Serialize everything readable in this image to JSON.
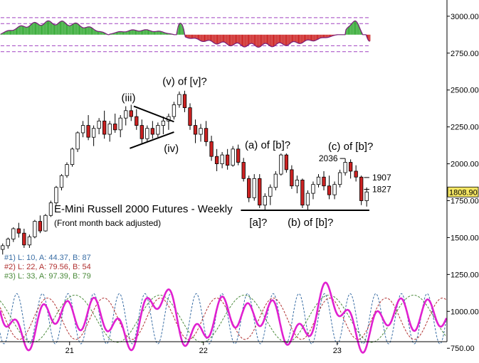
{
  "chart_data": {
    "type": "candlestick",
    "title": "E-Mini Russell 2000 Futures - Weekly",
    "subtitle": "(Front month back adjusted)",
    "colors": {
      "up_candle": "#ffffff",
      "down_candle": "#cc2222",
      "hist_pos": "#33aa33",
      "hist_neg": "#cc2222",
      "osc_main": "#e020d0",
      "cyc1": "#3a6ea5",
      "cyc2": "#b03030",
      "cyc3": "#4a8a3a",
      "last_price_box": "#f5e663",
      "grid_dash": "#a040c0"
    },
    "y_axis": {
      "ylim": [
        650,
        3110
      ],
      "ticks": [
        {
          "v": 3000,
          "label": "3000.00"
        },
        {
          "v": 2750,
          "label": "2750.00"
        },
        {
          "v": 2500,
          "label": "2500.00"
        },
        {
          "v": 2250,
          "label": "2250.00"
        },
        {
          "v": 2000,
          "label": "2000.00"
        },
        {
          "v": 1750,
          "label": "1750.00"
        },
        {
          "v": 1500,
          "label": "1500.00"
        },
        {
          "v": 1250,
          "label": "1250.00"
        },
        {
          "v": 1000,
          "label": "1000.00"
        },
        {
          "v": 750,
          "label": "750.00"
        }
      ]
    },
    "x_axis": {
      "ticks": [
        {
          "t": 0.5,
          "label": "21"
        },
        {
          "t": 1.5,
          "label": "22"
        },
        {
          "t": 2.5,
          "label": "23"
        }
      ],
      "range": [
        -0.02,
        3.32
      ]
    },
    "last_price": {
      "v": 1808.9,
      "label": "1808.90"
    },
    "levels": [
      {
        "v": 2036,
        "label": "2036",
        "t0": 2.52,
        "t1": 2.56
      },
      {
        "v": 1907,
        "label": "1907",
        "t0": 2.7,
        "t1": 2.74
      },
      {
        "v": 1827,
        "label": "1827",
        "t0": 2.7,
        "t1": 2.74
      }
    ],
    "support": {
      "v": 1685,
      "t0": 1.78,
      "t1": 2.74
    },
    "wave_labels": [
      {
        "text": "(iii)",
        "t": 0.94,
        "v": 2425
      },
      {
        "text": "(v) of [v]?",
        "t": 1.36,
        "v": 2535
      },
      {
        "text": "(iv)",
        "t": 1.26,
        "v": 2080
      },
      {
        "text": "(a) of [b]?",
        "t": 1.98,
        "v": 2105
      },
      {
        "text": "(c) of [b]?",
        "t": 2.6,
        "v": 2095
      },
      {
        "text": "[a]?",
        "t": 1.91,
        "v": 1578
      },
      {
        "text": "(b) of [b]?",
        "t": 2.3,
        "v": 1578
      }
    ],
    "triangle": [
      {
        "t": 0.98,
        "v": 2390
      },
      {
        "t": 1.28,
        "v": 2285
      },
      {
        "t": 0.95,
        "v": 2105
      },
      {
        "t": 1.28,
        "v": 2215
      }
    ],
    "candles": [
      {
        "t": 0.0,
        "o": 1420,
        "h": 1460,
        "l": 1385,
        "c": 1445
      },
      {
        "t": 0.04,
        "o": 1445,
        "h": 1500,
        "l": 1425,
        "c": 1490
      },
      {
        "t": 0.08,
        "o": 1490,
        "h": 1570,
        "l": 1470,
        "c": 1560
      },
      {
        "t": 0.12,
        "o": 1560,
        "h": 1600,
        "l": 1500,
        "c": 1530
      },
      {
        "t": 0.16,
        "o": 1530,
        "h": 1560,
        "l": 1430,
        "c": 1450
      },
      {
        "t": 0.2,
        "o": 1450,
        "h": 1520,
        "l": 1430,
        "c": 1505
      },
      {
        "t": 0.24,
        "o": 1505,
        "h": 1620,
        "l": 1495,
        "c": 1610
      },
      {
        "t": 0.28,
        "o": 1610,
        "h": 1650,
        "l": 1530,
        "c": 1545
      },
      {
        "t": 0.32,
        "o": 1545,
        "h": 1660,
        "l": 1540,
        "c": 1650
      },
      {
        "t": 0.36,
        "o": 1650,
        "h": 1750,
        "l": 1640,
        "c": 1735
      },
      {
        "t": 0.4,
        "o": 1735,
        "h": 1850,
        "l": 1720,
        "c": 1840
      },
      {
        "t": 0.44,
        "o": 1840,
        "h": 1930,
        "l": 1820,
        "c": 1920
      },
      {
        "t": 0.48,
        "o": 1920,
        "h": 2010,
        "l": 1905,
        "c": 1995
      },
      {
        "t": 0.52,
        "o": 1995,
        "h": 2110,
        "l": 1980,
        "c": 2100
      },
      {
        "t": 0.56,
        "o": 2100,
        "h": 2220,
        "l": 2080,
        "c": 2210
      },
      {
        "t": 0.6,
        "o": 2210,
        "h": 2290,
        "l": 2180,
        "c": 2260
      },
      {
        "t": 0.64,
        "o": 2260,
        "h": 2330,
        "l": 2160,
        "c": 2180
      },
      {
        "t": 0.68,
        "o": 2180,
        "h": 2260,
        "l": 2120,
        "c": 2240
      },
      {
        "t": 0.72,
        "o": 2240,
        "h": 2310,
        "l": 2200,
        "c": 2290
      },
      {
        "t": 0.76,
        "o": 2290,
        "h": 2360,
        "l": 2170,
        "c": 2200
      },
      {
        "t": 0.8,
        "o": 2200,
        "h": 2290,
        "l": 2150,
        "c": 2270
      },
      {
        "t": 0.84,
        "o": 2270,
        "h": 2340,
        "l": 2210,
        "c": 2230
      },
      {
        "t": 0.88,
        "o": 2230,
        "h": 2330,
        "l": 2180,
        "c": 2310
      },
      {
        "t": 0.92,
        "o": 2310,
        "h": 2390,
        "l": 2260,
        "c": 2360
      },
      {
        "t": 0.96,
        "o": 2360,
        "h": 2400,
        "l": 2290,
        "c": 2320
      },
      {
        "t": 1.0,
        "o": 2320,
        "h": 2370,
        "l": 2230,
        "c": 2260
      },
      {
        "t": 1.04,
        "o": 2260,
        "h": 2300,
        "l": 2140,
        "c": 2170
      },
      {
        "t": 1.08,
        "o": 2170,
        "h": 2260,
        "l": 2150,
        "c": 2240
      },
      {
        "t": 1.12,
        "o": 2240,
        "h": 2290,
        "l": 2170,
        "c": 2200
      },
      {
        "t": 1.16,
        "o": 2200,
        "h": 2280,
        "l": 2180,
        "c": 2260
      },
      {
        "t": 1.2,
        "o": 2260,
        "h": 2320,
        "l": 2200,
        "c": 2290
      },
      {
        "t": 1.24,
        "o": 2290,
        "h": 2340,
        "l": 2230,
        "c": 2320
      },
      {
        "t": 1.28,
        "o": 2320,
        "h": 2420,
        "l": 2300,
        "c": 2400
      },
      {
        "t": 1.32,
        "o": 2400,
        "h": 2490,
        "l": 2380,
        "c": 2470
      },
      {
        "t": 1.36,
        "o": 2470,
        "h": 2495,
        "l": 2350,
        "c": 2380
      },
      {
        "t": 1.4,
        "o": 2380,
        "h": 2410,
        "l": 2230,
        "c": 2260
      },
      {
        "t": 1.44,
        "o": 2260,
        "h": 2300,
        "l": 2140,
        "c": 2200
      },
      {
        "t": 1.48,
        "o": 2200,
        "h": 2270,
        "l": 2150,
        "c": 2240
      },
      {
        "t": 1.52,
        "o": 2240,
        "h": 2290,
        "l": 2120,
        "c": 2150
      },
      {
        "t": 1.56,
        "o": 2150,
        "h": 2190,
        "l": 2020,
        "c": 2050
      },
      {
        "t": 1.6,
        "o": 2050,
        "h": 2100,
        "l": 1950,
        "c": 2000
      },
      {
        "t": 1.64,
        "o": 2000,
        "h": 2080,
        "l": 1970,
        "c": 2060
      },
      {
        "t": 1.68,
        "o": 2060,
        "h": 2100,
        "l": 1960,
        "c": 1990
      },
      {
        "t": 1.72,
        "o": 1990,
        "h": 2120,
        "l": 1980,
        "c": 2100
      },
      {
        "t": 1.76,
        "o": 2100,
        "h": 2130,
        "l": 1990,
        "c": 2010
      },
      {
        "t": 1.8,
        "o": 2010,
        "h": 2040,
        "l": 1880,
        "c": 1900
      },
      {
        "t": 1.84,
        "o": 1900,
        "h": 1920,
        "l": 1740,
        "c": 1770
      },
      {
        "t": 1.88,
        "o": 1770,
        "h": 1930,
        "l": 1750,
        "c": 1900
      },
      {
        "t": 1.92,
        "o": 1900,
        "h": 1930,
        "l": 1700,
        "c": 1720
      },
      {
        "t": 1.96,
        "o": 1720,
        "h": 1800,
        "l": 1690,
        "c": 1780
      },
      {
        "t": 2.0,
        "o": 1780,
        "h": 1860,
        "l": 1720,
        "c": 1840
      },
      {
        "t": 2.04,
        "o": 1840,
        "h": 1950,
        "l": 1820,
        "c": 1930
      },
      {
        "t": 2.08,
        "o": 1930,
        "h": 2070,
        "l": 1920,
        "c": 2060
      },
      {
        "t": 2.12,
        "o": 2060,
        "h": 2070,
        "l": 1940,
        "c": 1960
      },
      {
        "t": 2.16,
        "o": 1960,
        "h": 1990,
        "l": 1830,
        "c": 1850
      },
      {
        "t": 2.2,
        "o": 1850,
        "h": 1920,
        "l": 1800,
        "c": 1890
      },
      {
        "t": 2.24,
        "o": 1890,
        "h": 1900,
        "l": 1700,
        "c": 1720
      },
      {
        "t": 2.28,
        "o": 1720,
        "h": 1820,
        "l": 1690,
        "c": 1800
      },
      {
        "t": 2.32,
        "o": 1800,
        "h": 1880,
        "l": 1760,
        "c": 1860
      },
      {
        "t": 2.36,
        "o": 1860,
        "h": 1930,
        "l": 1840,
        "c": 1910
      },
      {
        "t": 2.4,
        "o": 1910,
        "h": 1950,
        "l": 1820,
        "c": 1850
      },
      {
        "t": 2.44,
        "o": 1850,
        "h": 1920,
        "l": 1760,
        "c": 1790
      },
      {
        "t": 2.48,
        "o": 1790,
        "h": 1880,
        "l": 1760,
        "c": 1860
      },
      {
        "t": 2.52,
        "o": 1860,
        "h": 1960,
        "l": 1840,
        "c": 1940
      },
      {
        "t": 2.56,
        "o": 1940,
        "h": 2036,
        "l": 1920,
        "c": 2010
      },
      {
        "t": 2.6,
        "o": 2010,
        "h": 2030,
        "l": 1900,
        "c": 1950
      },
      {
        "t": 2.64,
        "o": 1950,
        "h": 1990,
        "l": 1880,
        "c": 1910
      },
      {
        "t": 2.68,
        "o": 1910,
        "h": 1920,
        "l": 1720,
        "c": 1750
      },
      {
        "t": 2.72,
        "o": 1750,
        "h": 1840,
        "l": 1710,
        "c": 1809
      }
    ],
    "macd_panel": {
      "zero": 2875,
      "range": [
        2760,
        2990
      ],
      "bounds": [
        -0.015,
        2.75
      ],
      "segments": [
        {
          "t0": -0.015,
          "t1": 0.8,
          "mid": 0.38,
          "peak": 95
        },
        {
          "t0": 0.8,
          "t1": 1.3,
          "mid": 1.03,
          "peak": 35
        },
        {
          "t0": 1.3,
          "t1": 1.36,
          "mid": 1.33,
          "peak": 110
        },
        {
          "t0": 1.36,
          "t1": 2.56,
          "mid": 1.9,
          "peak": -85
        },
        {
          "t0": 2.56,
          "t1": 2.7,
          "mid": 2.62,
          "peak": 100
        },
        {
          "t0": 2.7,
          "t1": 2.75,
          "mid": 2.74,
          "peak": -45
        }
      ]
    },
    "oscillator_panel": {
      "zero": 950,
      "cycles": [
        {
          "id": 1,
          "period_weeks": 10,
          "amp_weeks": 87,
          "amplitude": 170
        },
        {
          "id": 2,
          "period_weeks": 22,
          "amp_weeks": 54,
          "amplitude": 140
        },
        {
          "id": 3,
          "period_weeks": 33,
          "amp_weeks": 79,
          "amplitude": 160
        }
      ],
      "weeks_per_unit": 52.18
    },
    "cycle_legend": [
      {
        "id": "#1)",
        "text": "#1) L: 10, A: 44.37, B: 87",
        "color": "#3a6ea5"
      },
      {
        "id": "#2)",
        "text": "#2) L: 22, A: 79.56, B: 54",
        "color": "#b03030"
      },
      {
        "id": "#3)",
        "text": "#3) L: 33, A: 97.39, B: 79",
        "color": "#4a8a3a"
      }
    ]
  }
}
